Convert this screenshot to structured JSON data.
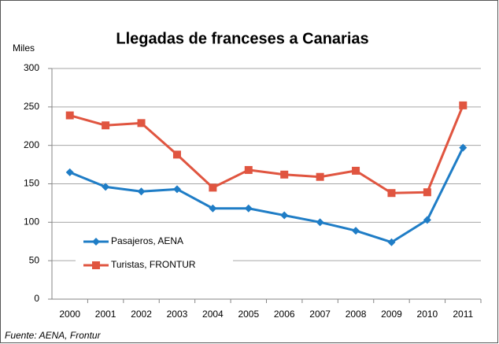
{
  "chart_data": {
    "type": "line",
    "title": "Llegadas de franceses a Canarias",
    "ylabel": "Miles",
    "source": "Fuente: AENA, Frontur",
    "categories": [
      "2000",
      "2001",
      "2002",
      "2003",
      "2004",
      "2005",
      "2006",
      "2007",
      "2008",
      "2009",
      "2010",
      "2011"
    ],
    "series": [
      {
        "name": "Pasajeros, AENA",
        "color": "#1f7dc6",
        "marker": "diamond",
        "values": [
          165,
          146,
          140,
          143,
          118,
          118,
          109,
          100,
          89,
          74,
          103,
          197
        ]
      },
      {
        "name": "Turistas, FRONTUR",
        "color": "#e05540",
        "marker": "square",
        "values": [
          239,
          226,
          229,
          188,
          145,
          168,
          162,
          159,
          167,
          138,
          139,
          252
        ]
      }
    ],
    "ylim": [
      0,
      300
    ],
    "yticks": [
      0,
      50,
      100,
      150,
      200,
      250,
      300
    ],
    "grid": true,
    "legend": "lower left"
  }
}
